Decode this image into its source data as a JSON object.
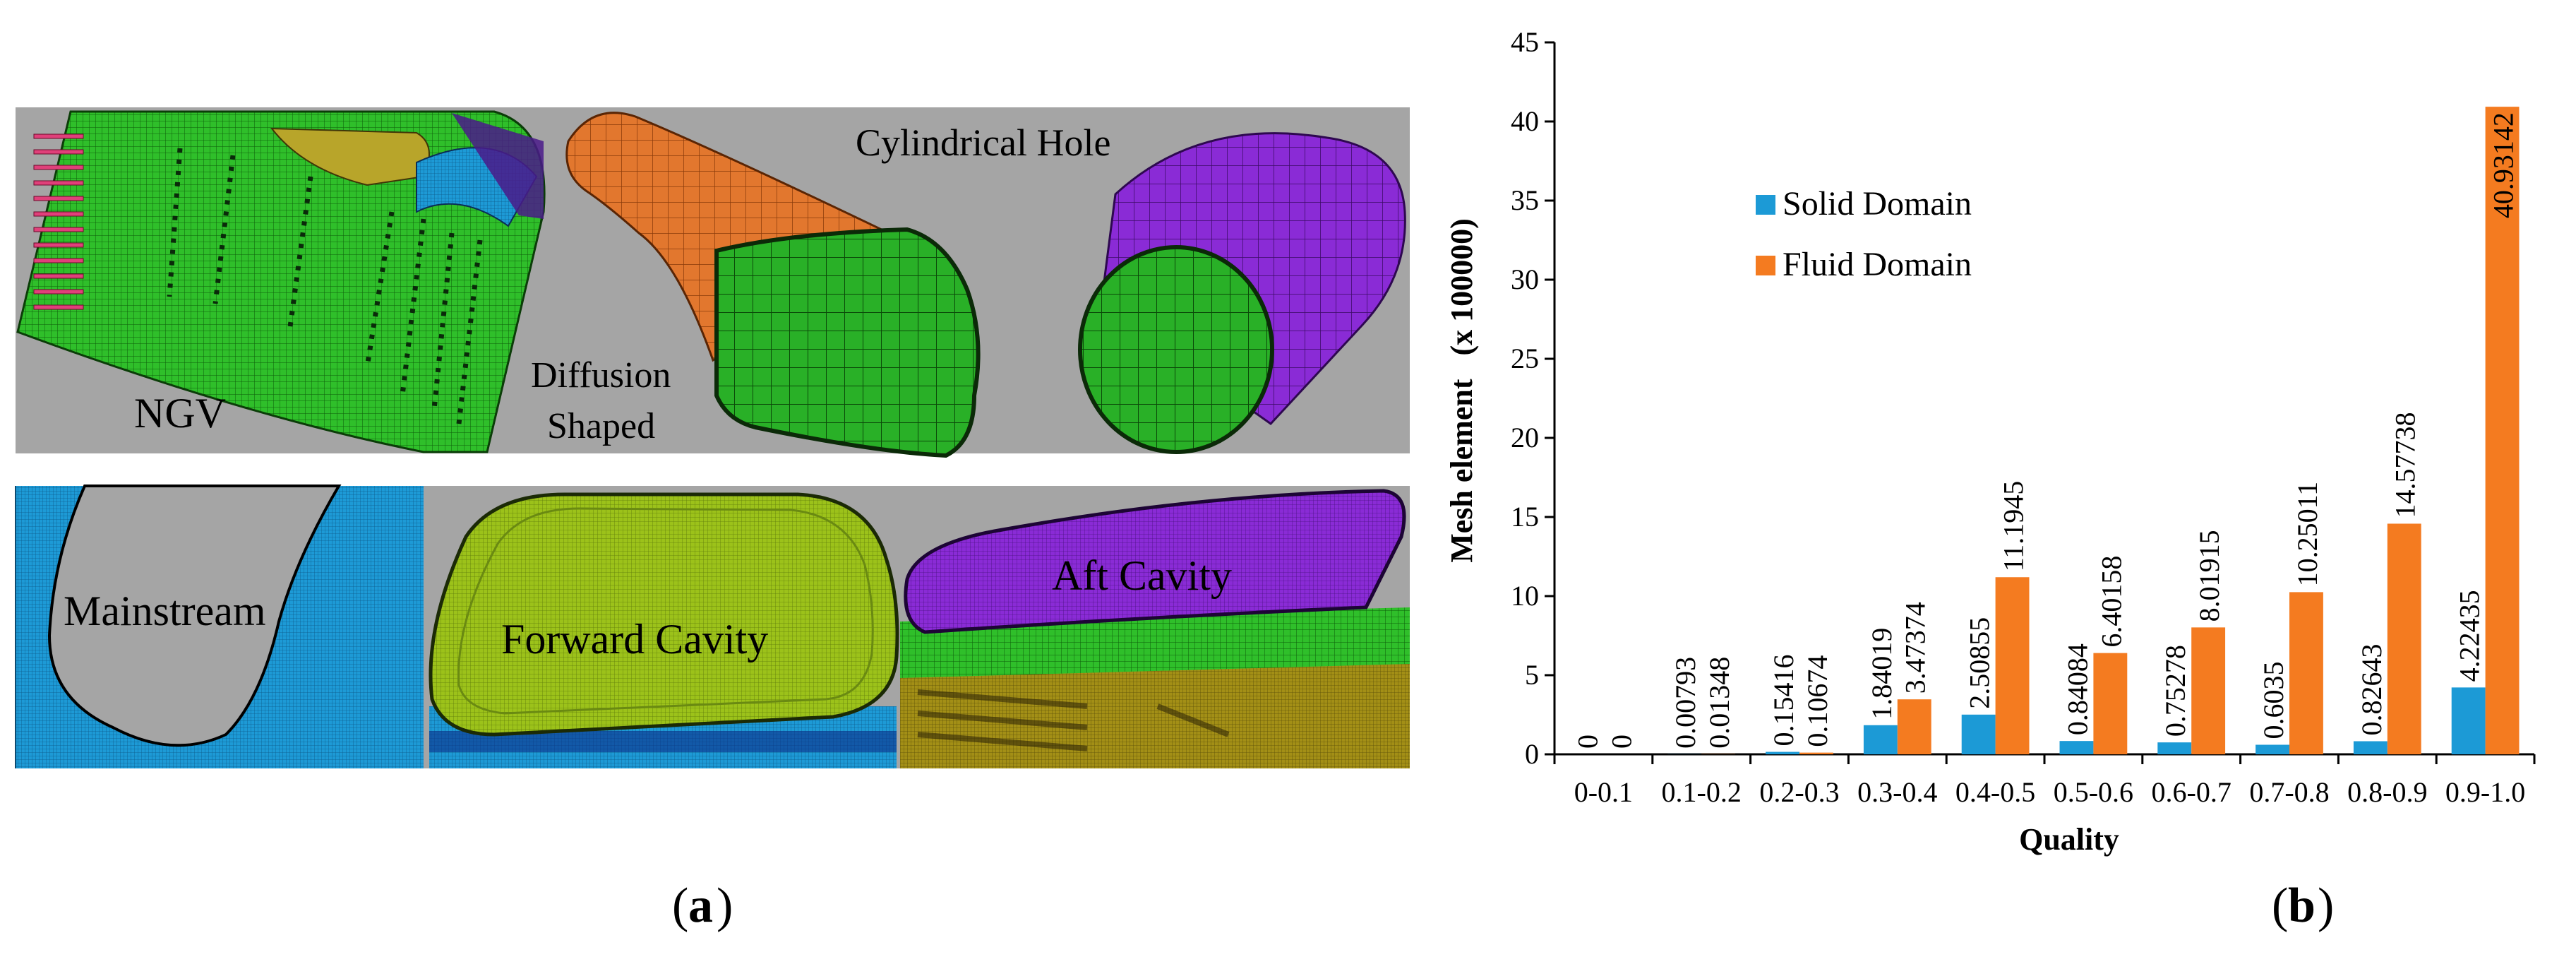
{
  "panel_a": {
    "caption_label": "a",
    "labels": {
      "ngv": "NGV",
      "diffusion_line1": "Diffusion",
      "diffusion_line2": "Shaped",
      "cylindrical_hole": "Cylindrical Hole",
      "mainstream": "Mainstream",
      "forward_cavity": "Forward Cavity",
      "aft_cavity": "Aft Cavity"
    },
    "colors": {
      "background": "#a5a5a5",
      "green": "#2fbf2a",
      "orange": "#e2772e",
      "purple": "#8a2bd6",
      "blue": "#1d9ad6",
      "yellow_green": "#9cc21a",
      "olive": "#9d8a14",
      "pink": "#e0407a"
    }
  },
  "panel_b": {
    "caption_label": "b"
  },
  "chart_data": {
    "type": "bar",
    "title": "",
    "xlabel": "Quality",
    "ylabel": "Mesh element   (x 100000)",
    "ylim": [
      0,
      45
    ],
    "yticks": [
      0,
      5,
      10,
      15,
      20,
      25,
      30,
      35,
      40,
      45
    ],
    "categories": [
      "0-0.1",
      "0.1-0.2",
      "0.2-0.3",
      "0.3-0.4",
      "0.4-0.5",
      "0.5-0.6",
      "0.6-0.7",
      "0.7-0.8",
      "0.8-0.9",
      "0.9-1.0"
    ],
    "series": [
      {
        "name": "Solid Domain",
        "color": "#1c9ad6",
        "values": [
          0,
          0.00793,
          0.15416,
          1.84019,
          2.50855,
          0.84084,
          0.75278,
          0.6035,
          0.82643,
          4.22435
        ],
        "labels": [
          "0",
          "0.00793",
          "0.15416",
          "1.84019",
          "2.50855",
          "0.84084",
          "0.75278",
          "0.6035",
          "0.82643",
          "4.22435"
        ]
      },
      {
        "name": "Fluid Domain",
        "color": "#f47b20",
        "values": [
          0,
          0.01348,
          0.10674,
          3.47374,
          11.1945,
          6.40158,
          8.01915,
          10.25011,
          14.57738,
          40.93142
        ],
        "labels": [
          "0",
          "0.01348",
          "0.10674",
          "3.47374",
          "11.1945",
          "6.40158",
          "8.01915",
          "10.25011",
          "14.57738",
          "40.93142"
        ]
      }
    ],
    "legend_position": "top-left"
  }
}
